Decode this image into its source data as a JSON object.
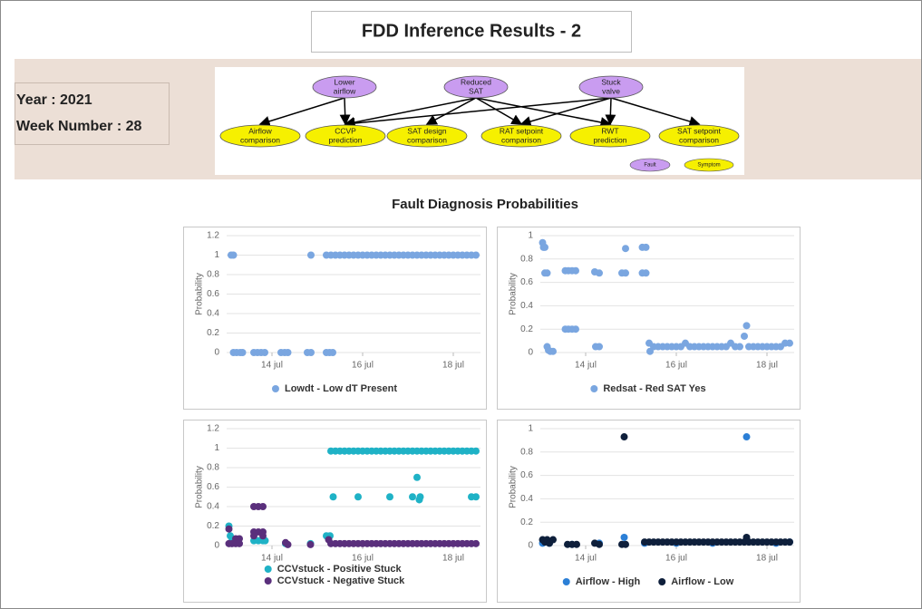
{
  "header": {
    "title": "FDD Inference Results - 2"
  },
  "info": {
    "year": "Year : 2021",
    "week": "Week Number : 28"
  },
  "diagram": {
    "faults": [
      {
        "label": [
          "Lower",
          "airflow"
        ]
      },
      {
        "label": [
          "Reduced",
          "SAT"
        ]
      },
      {
        "label": [
          "Stuck",
          "valve"
        ]
      }
    ],
    "symptoms": [
      {
        "label": [
          "Airflow",
          "comparison"
        ]
      },
      {
        "label": [
          "CCVP",
          "prediction"
        ]
      },
      {
        "label": [
          "SAT design",
          "comparison"
        ]
      },
      {
        "label": [
          "RAT setpoint",
          "comparison"
        ]
      },
      {
        "label": [
          "RWT",
          "prediction"
        ]
      },
      {
        "label": [
          "SAT setpoint",
          "comparison"
        ]
      }
    ],
    "legend": {
      "fault": "Fault",
      "symptom": "Symptom"
    }
  },
  "section_title": "Fault Diagnosis Probabilities",
  "chart_data": [
    {
      "type": "scatter",
      "ylabel": "Probability",
      "grid": true,
      "legend": "bottom",
      "xlim": [
        13,
        18.6
      ],
      "xticks": [
        {
          "value": 14,
          "label": "14 jul"
        },
        {
          "value": 16,
          "label": "16 jul"
        },
        {
          "value": 18,
          "label": "18 jul"
        }
      ],
      "ylim": [
        0,
        1.2
      ],
      "yticks": [
        0,
        0.2,
        0.4,
        0.6,
        0.8,
        1,
        1.2
      ],
      "series": [
        {
          "name": "Lowdt - Low dT Present",
          "color": "#7aa6e0",
          "x": [
            13.1,
            13.15,
            13.15,
            13.22,
            13.3,
            13.35,
            13.6,
            13.68,
            13.76,
            13.84,
            14.2,
            14.28,
            14.35,
            14.78,
            14.86,
            14.86,
            15.2,
            15.27,
            15.34,
            15.2,
            15.3,
            15.4,
            15.5,
            15.6,
            15.7,
            15.8,
            15.9,
            16,
            16.1,
            16.2,
            16.3,
            16.4,
            16.5,
            16.6,
            16.7,
            16.8,
            16.9,
            17,
            17.1,
            17.2,
            17.3,
            17.4,
            17.5,
            17.6,
            17.7,
            17.8,
            17.9,
            18,
            18.1,
            18.2,
            18.3,
            18.4,
            18.5
          ],
          "values": [
            1,
            1,
            0,
            0,
            0,
            0,
            0,
            0,
            0,
            0,
            0,
            0,
            0,
            0,
            0,
            1,
            0,
            0,
            0,
            1,
            1,
            1,
            1,
            1,
            1,
            1,
            1,
            1,
            1,
            1,
            1,
            1,
            1,
            1,
            1,
            1,
            1,
            1,
            1,
            1,
            1,
            1,
            1,
            1,
            1,
            1,
            1,
            1,
            1,
            1,
            1,
            1,
            1
          ]
        }
      ]
    },
    {
      "type": "scatter",
      "ylabel": "Probability",
      "grid": true,
      "legend": "bottom",
      "xlim": [
        13,
        18.6
      ],
      "xticks": [
        {
          "value": 14,
          "label": "14 jul"
        },
        {
          "value": 16,
          "label": "16 jul"
        },
        {
          "value": 18,
          "label": "18 jul"
        }
      ],
      "ylim": [
        0,
        1
      ],
      "yticks": [
        0,
        0.2,
        0.4,
        0.6,
        0.8,
        1
      ],
      "series": [
        {
          "name": "Redsat - Red SAT Yes",
          "color": "#7aa6e0",
          "x": [
            13.05,
            13.07,
            13.1,
            13.1,
            13.15,
            13.15,
            13.18,
            13.22,
            13.28,
            13.55,
            13.62,
            13.7,
            13.78,
            13.55,
            13.62,
            13.7,
            13.78,
            14.2,
            14.3,
            14.22,
            14.3,
            14.8,
            14.88,
            14.88,
            15.25,
            15.33,
            15.25,
            15.33,
            15.4,
            15.42,
            15.5,
            15.6,
            15.7,
            15.8,
            15.9,
            16,
            16.1,
            16.2,
            16.3,
            16.4,
            16.5,
            16.6,
            16.7,
            16.8,
            16.9,
            17,
            17.1,
            17.2,
            17.3,
            17.4,
            17.5,
            17.6,
            17.7,
            17.8,
            17.9,
            18,
            18.1,
            18.2,
            18.3,
            18.4,
            18.5,
            17.55
          ],
          "values": [
            0.94,
            0.9,
            0.9,
            0.68,
            0.68,
            0.05,
            0.02,
            0.01,
            0.01,
            0.7,
            0.7,
            0.7,
            0.7,
            0.2,
            0.2,
            0.2,
            0.2,
            0.69,
            0.68,
            0.05,
            0.05,
            0.68,
            0.68,
            0.89,
            0.9,
            0.9,
            0.68,
            0.68,
            0.08,
            0.01,
            0.05,
            0.05,
            0.05,
            0.05,
            0.05,
            0.05,
            0.05,
            0.08,
            0.05,
            0.05,
            0.05,
            0.05,
            0.05,
            0.05,
            0.05,
            0.05,
            0.05,
            0.08,
            0.05,
            0.05,
            0.14,
            0.05,
            0.05,
            0.05,
            0.05,
            0.05,
            0.05,
            0.05,
            0.05,
            0.08,
            0.08,
            0.23
          ]
        }
      ]
    },
    {
      "type": "scatter",
      "ylabel": "Probability",
      "grid": true,
      "legend": "bottom",
      "xlim": [
        13,
        18.6
      ],
      "xticks": [
        {
          "value": 14,
          "label": "14 jul"
        },
        {
          "value": 16,
          "label": "16 jul"
        },
        {
          "value": 18,
          "label": "18 jul"
        }
      ],
      "ylim": [
        0,
        1.2
      ],
      "yticks": [
        0,
        0.2,
        0.4,
        0.6,
        0.8,
        1,
        1.2
      ],
      "series": [
        {
          "name": "CCVstuck - Positive Stuck",
          "color": "#1fb2c6",
          "x": [
            13.05,
            13.08,
            13.12,
            13.6,
            13.7,
            13.8,
            13.85,
            14.3,
            14.85,
            15.2,
            15.28,
            15.35,
            15.3,
            15.4,
            15.5,
            15.6,
            15.7,
            15.8,
            15.9,
            16,
            16.1,
            16.2,
            16.3,
            16.4,
            16.5,
            16.6,
            16.7,
            16.8,
            16.9,
            17,
            17.1,
            17.2,
            17.3,
            17.4,
            17.5,
            17.6,
            17.7,
            17.8,
            17.9,
            18,
            18.1,
            18.2,
            18.3,
            18.4,
            18.5,
            15.9,
            16.6,
            17.1,
            17.2,
            17.25,
            17.27,
            18.4,
            18.5
          ],
          "values": [
            0.2,
            0.1,
            0.05,
            0.05,
            0.05,
            0.05,
            0.05,
            0.02,
            0.02,
            0.1,
            0.1,
            0.5,
            0.97,
            0.97,
            0.97,
            0.97,
            0.97,
            0.97,
            0.97,
            0.97,
            0.97,
            0.97,
            0.97,
            0.97,
            0.97,
            0.97,
            0.97,
            0.97,
            0.97,
            0.97,
            0.97,
            0.97,
            0.97,
            0.97,
            0.97,
            0.97,
            0.97,
            0.97,
            0.97,
            0.97,
            0.97,
            0.97,
            0.97,
            0.97,
            0.97,
            0.5,
            0.5,
            0.5,
            0.7,
            0.47,
            0.5,
            0.5,
            0.5
          ]
        },
        {
          "name": "CCVstuck - Negative Stuck",
          "color": "#5a2f7c",
          "x": [
            13.05,
            13.05,
            13.12,
            13.2,
            13.28,
            13.2,
            13.28,
            13.6,
            13.7,
            13.8,
            13.6,
            13.7,
            13.8,
            13.6,
            13.8,
            14.3,
            14.35,
            14.85,
            15.25,
            15.3,
            15.4,
            15.5,
            15.6,
            15.7,
            15.8,
            15.9,
            16,
            16.1,
            16.2,
            16.3,
            16.4,
            16.5,
            16.6,
            16.7,
            16.8,
            16.9,
            17,
            17.1,
            17.2,
            17.3,
            17.4,
            17.5,
            17.6,
            17.7,
            17.8,
            17.9,
            18,
            18.1,
            18.2,
            18.3,
            18.4,
            18.5
          ],
          "values": [
            0.17,
            0.02,
            0.02,
            0.02,
            0.02,
            0.07,
            0.07,
            0.4,
            0.4,
            0.4,
            0.14,
            0.14,
            0.14,
            0.1,
            0.1,
            0.03,
            0.01,
            0.01,
            0.06,
            0.02,
            0.02,
            0.02,
            0.02,
            0.02,
            0.02,
            0.02,
            0.02,
            0.02,
            0.02,
            0.02,
            0.02,
            0.02,
            0.02,
            0.02,
            0.02,
            0.02,
            0.02,
            0.02,
            0.02,
            0.02,
            0.02,
            0.02,
            0.02,
            0.02,
            0.02,
            0.02,
            0.02,
            0.02,
            0.02,
            0.02,
            0.02,
            0.02
          ]
        }
      ]
    },
    {
      "type": "scatter",
      "ylabel": "Probability",
      "grid": true,
      "legend": "bottom",
      "xlim": [
        13,
        18.6
      ],
      "xticks": [
        {
          "value": 14,
          "label": "14 jul"
        },
        {
          "value": 16,
          "label": "16 jul"
        },
        {
          "value": 18,
          "label": "18 jul"
        }
      ],
      "ylim": [
        0,
        1
      ],
      "yticks": [
        0,
        0.2,
        0.4,
        0.6,
        0.8,
        1
      ],
      "series": [
        {
          "name": "Airflow - High",
          "color": "#2b7fd6",
          "x": [
            13.05,
            13.2,
            13.7,
            14.3,
            14.85,
            15.3,
            16,
            16.8,
            17.55,
            17.55,
            18.2,
            18.5
          ],
          "values": [
            0.02,
            0.02,
            0.01,
            0.02,
            0.07,
            0.02,
            0.02,
            0.02,
            0.93,
            0.05,
            0.02,
            0.03
          ]
        },
        {
          "name": "Airflow - Low",
          "color": "#0e1f3b",
          "x": [
            14.85,
            13.05,
            13.1,
            13.15,
            13.2,
            13.28,
            13.6,
            13.7,
            13.8,
            14.2,
            14.3,
            14.8,
            14.88,
            17.55,
            15.3,
            15.4,
            15.5,
            15.6,
            15.7,
            15.8,
            15.9,
            16,
            16.1,
            16.2,
            16.3,
            16.4,
            16.5,
            16.6,
            16.7,
            16.8,
            16.9,
            17,
            17.1,
            17.2,
            17.3,
            17.4,
            17.5,
            17.6,
            17.7,
            17.8,
            17.9,
            18,
            18.1,
            18.2,
            18.3,
            18.4,
            18.5
          ],
          "values": [
            0.93,
            0.05,
            0.03,
            0.05,
            0.02,
            0.05,
            0.01,
            0.01,
            0.01,
            0.02,
            0.01,
            0.01,
            0.01,
            0.07,
            0.03,
            0.03,
            0.03,
            0.03,
            0.03,
            0.03,
            0.03,
            0.03,
            0.03,
            0.03,
            0.03,
            0.03,
            0.03,
            0.03,
            0.03,
            0.03,
            0.03,
            0.03,
            0.03,
            0.03,
            0.03,
            0.03,
            0.03,
            0.03,
            0.03,
            0.03,
            0.03,
            0.03,
            0.03,
            0.03,
            0.03,
            0.03,
            0.03
          ]
        }
      ]
    }
  ]
}
